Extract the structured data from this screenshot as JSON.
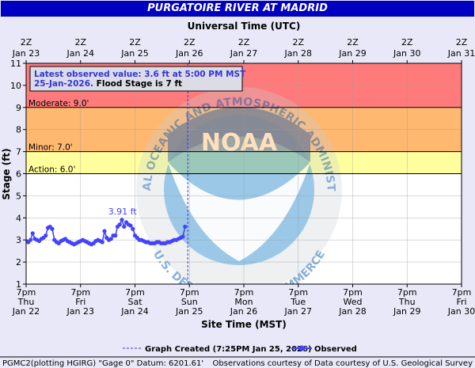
{
  "header": {
    "title": "PURGATOIRE RIVER AT MADRID"
  },
  "top_axis": {
    "title": "Universal Time (UTC)",
    "ticks": [
      {
        "l1": "2Z",
        "l2": "Jan 23"
      },
      {
        "l1": "2Z",
        "l2": "Jan 24"
      },
      {
        "l1": "2Z",
        "l2": "Jan 25"
      },
      {
        "l1": "2Z",
        "l2": "Jan 26"
      },
      {
        "l1": "2Z",
        "l2": "Jan 27"
      },
      {
        "l1": "2Z",
        "l2": "Jan 28"
      },
      {
        "l1": "2Z",
        "l2": "Jan 29"
      },
      {
        "l1": "2Z",
        "l2": "Jan 30"
      },
      {
        "l1": "2Z",
        "l2": "Jan 31"
      }
    ]
  },
  "bottom_axis": {
    "title": "Site Time (MST)",
    "ticks": [
      {
        "l1": "7pm",
        "l2": "Thu",
        "l3": "Jan 22"
      },
      {
        "l1": "7pm",
        "l2": "Fri",
        "l3": "Jan 23"
      },
      {
        "l1": "7pm",
        "l2": "Sat",
        "l3": "Jan 24"
      },
      {
        "l1": "7pm",
        "l2": "Sun",
        "l3": "Jan 25"
      },
      {
        "l1": "7pm",
        "l2": "Mon",
        "l3": "Jan 26"
      },
      {
        "l1": "7pm",
        "l2": "Tue",
        "l3": "Jan 27"
      },
      {
        "l1": "7pm",
        "l2": "Wed",
        "l3": "Jan 28"
      },
      {
        "l1": "7pm",
        "l2": "Thu",
        "l3": "Jan 29"
      },
      {
        "l1": "7pm",
        "l2": "Fri",
        "l3": "Jan 30"
      }
    ]
  },
  "watermark": {
    "logo_text": "NOAA",
    "ring_top": "NATIONAL OCEANIC AND ATMOSPHERIC ADMINISTRATION",
    "ring_bottom": "U.S. DEPARTMENT OF COMMERCE"
  },
  "info_box": {
    "line1": "Latest observed value: 3.6 ft at 5:00 PM MST",
    "line2_date": "25-Jan-2026.",
    "line2_flood": " Flood Stage is 7 ft"
  },
  "legend": {
    "created": "Graph Created (7:25PM Jan 25, 2026)",
    "observed": "Observed"
  },
  "footer": {
    "left": "PGMC2(plotting HGIRG) \"Gage 0\" Datum: 6201.61'",
    "right": "Observations courtesy of Data courtesy of U.S. Geological Survey"
  },
  "colors": {
    "major": "#ff7b7b",
    "moderate": "#ffb870",
    "minor": "#ffff9e",
    "observed": "#4343ff",
    "title_bg": "#0000c0",
    "created_line": "#3a3ad0"
  },
  "chart_data": {
    "type": "line",
    "title": "PURGATOIRE RIVER AT MADRID",
    "ylabel": "Stage (ft)",
    "xlabel": "Site Time (MST)",
    "x_units": "days since 7pm Thu Jan 22 MST",
    "ylim": [
      1,
      11
    ],
    "y_ticks": [
      1,
      2,
      3,
      4,
      5,
      6,
      7,
      8,
      9,
      10,
      11
    ],
    "xlim": [
      0,
      8
    ],
    "flood_categories": [
      {
        "name": "Moderate",
        "label": "Moderate: 9.0'",
        "value": 9.0
      },
      {
        "name": "Minor",
        "label": "Minor: 7.0'",
        "value": 7.0
      },
      {
        "name": "Action",
        "label": "Action: 6.0'",
        "value": 6.0
      }
    ],
    "graph_created_x": 2.97,
    "peak_annotation": {
      "text": "3.91 ft",
      "x": 1.77,
      "y": 3.91
    },
    "series": [
      {
        "name": "Observed",
        "points": [
          [
            0.0,
            2.95
          ],
          [
            0.04,
            2.9
          ],
          [
            0.08,
            3.0
          ],
          [
            0.12,
            3.3
          ],
          [
            0.16,
            3.05
          ],
          [
            0.2,
            3.0
          ],
          [
            0.24,
            2.95
          ],
          [
            0.28,
            3.05
          ],
          [
            0.32,
            3.1
          ],
          [
            0.36,
            3.2
          ],
          [
            0.4,
            3.55
          ],
          [
            0.44,
            3.6
          ],
          [
            0.48,
            3.5
          ],
          [
            0.52,
            3.0
          ],
          [
            0.56,
            2.9
          ],
          [
            0.6,
            2.85
          ],
          [
            0.64,
            2.95
          ],
          [
            0.68,
            3.0
          ],
          [
            0.72,
            3.05
          ],
          [
            0.76,
            2.95
          ],
          [
            0.8,
            2.9
          ],
          [
            0.84,
            2.85
          ],
          [
            0.88,
            2.8
          ],
          [
            0.92,
            2.85
          ],
          [
            0.96,
            2.9
          ],
          [
            1.0,
            2.95
          ],
          [
            1.04,
            3.0
          ],
          [
            1.08,
            2.95
          ],
          [
            1.12,
            2.9
          ],
          [
            1.16,
            2.85
          ],
          [
            1.2,
            2.8
          ],
          [
            1.24,
            2.85
          ],
          [
            1.28,
            2.95
          ],
          [
            1.32,
            3.0
          ],
          [
            1.36,
            2.95
          ],
          [
            1.4,
            2.9
          ],
          [
            1.44,
            3.4
          ],
          [
            1.48,
            3.1
          ],
          [
            1.52,
            3.0
          ],
          [
            1.56,
            3.05
          ],
          [
            1.6,
            3.2
          ],
          [
            1.64,
            3.2
          ],
          [
            1.68,
            3.6
          ],
          [
            1.72,
            3.7
          ],
          [
            1.76,
            3.91
          ],
          [
            1.8,
            3.6
          ],
          [
            1.84,
            3.8
          ],
          [
            1.88,
            3.7
          ],
          [
            1.92,
            3.65
          ],
          [
            1.96,
            3.5
          ],
          [
            2.0,
            3.2
          ],
          [
            2.04,
            3.1
          ],
          [
            2.08,
            3.0
          ],
          [
            2.12,
            3.0
          ],
          [
            2.16,
            2.95
          ],
          [
            2.2,
            2.9
          ],
          [
            2.24,
            2.9
          ],
          [
            2.28,
            2.85
          ],
          [
            2.32,
            2.85
          ],
          [
            2.36,
            2.85
          ],
          [
            2.4,
            2.9
          ],
          [
            2.44,
            2.9
          ],
          [
            2.48,
            2.85
          ],
          [
            2.52,
            2.85
          ],
          [
            2.56,
            2.85
          ],
          [
            2.6,
            2.9
          ],
          [
            2.64,
            2.9
          ],
          [
            2.68,
            2.95
          ],
          [
            2.72,
            3.0
          ],
          [
            2.76,
            3.0
          ],
          [
            2.8,
            3.05
          ],
          [
            2.84,
            3.1
          ],
          [
            2.88,
            3.15
          ],
          [
            2.92,
            3.6
          ]
        ]
      }
    ]
  }
}
